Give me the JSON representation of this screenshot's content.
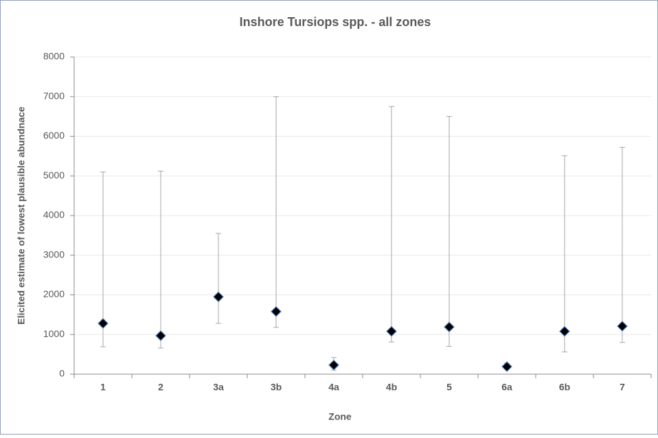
{
  "chart_data": {
    "type": "range-scatter",
    "title": "Inshore Tursiops spp. - all zones",
    "x_label": "Zone",
    "y_label": "Elicited estimate of lowest plausible abundnace",
    "categories": [
      "1",
      "2",
      "3a",
      "3b",
      "4a",
      "4b",
      "5",
      "6a",
      "6b",
      "7"
    ],
    "series": [
      {
        "color": "#000000",
        "edge_color": "#4f81bd",
        "values": [
          1280,
          970,
          1950,
          1580,
          230,
          1080,
          1190,
          190,
          1080,
          1210
        ],
        "low": [
          690,
          660,
          1280,
          1180,
          100,
          810,
          700,
          120,
          560,
          800
        ],
        "high": [
          5100,
          5120,
          3550,
          7000,
          420,
          6750,
          6500,
          270,
          5510,
          5720
        ]
      }
    ],
    "error_color": "#a6a6a6",
    "ylim": [
      0,
      8000
    ],
    "yticks": [
      0,
      1000,
      2000,
      3000,
      4000,
      5000,
      6000,
      7000,
      8000
    ],
    "grid": true
  }
}
